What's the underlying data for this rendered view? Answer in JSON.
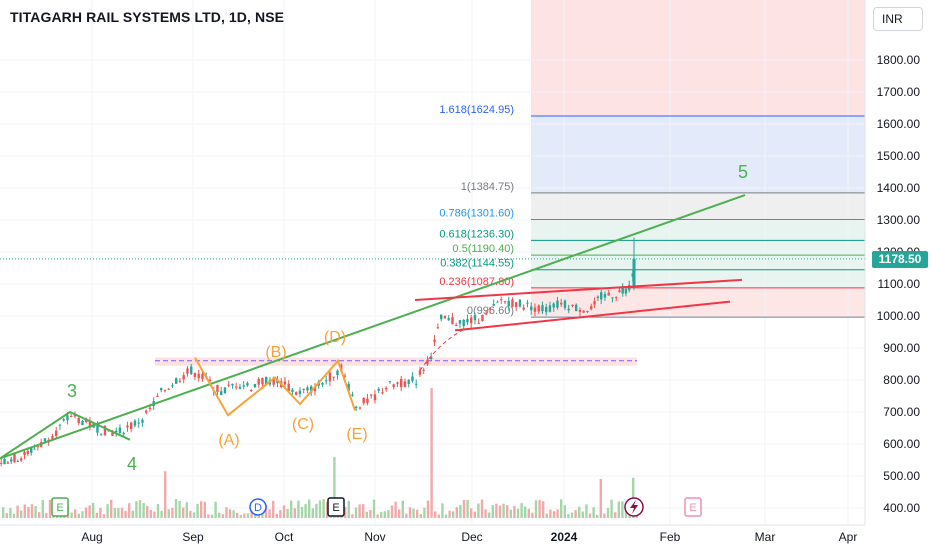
{
  "header": {
    "title": "TITAGARH RAIL SYSTEMS LTD, 1D, NSE",
    "currency": "INR"
  },
  "last_price": "1178.50",
  "colors": {
    "up": "#26a69a",
    "down": "#ef5350",
    "wave_orange": "#f7a23b",
    "wave_green": "#4caf50",
    "trend_green": "#4caf50",
    "trend_red": "#f23645"
  },
  "chart_data": {
    "type": "candlestick",
    "title": "TITAGARH RAIL SYSTEMS LTD, 1D, NSE",
    "y_axis": {
      "ticks": [
        "1800.00",
        "1700.00",
        "1600.00",
        "1500.00",
        "1400.00",
        "1300.00",
        "1200.00",
        "1100.00",
        "1000.00",
        "900.00",
        "800.00",
        "700.00",
        "600.00",
        "500.00",
        "400.00"
      ],
      "range": [
        372,
        1910
      ]
    },
    "x_axis": {
      "labels": [
        "Aug",
        "Sep",
        "Oct",
        "Nov",
        "Dec",
        "2024",
        "Feb",
        "Mar",
        "Apr"
      ]
    },
    "fib_levels": [
      {
        "label": "1.618(1624.95)",
        "value": 1624.95,
        "color": "#2962ff"
      },
      {
        "label": "1(1384.75)",
        "value": 1384.75,
        "color": "#787b86"
      },
      {
        "label": "0.786(1301.60)",
        "value": 1301.6,
        "color": "#2196f3"
      },
      {
        "label": "0.618(1236.30)",
        "value": 1236.3,
        "color": "#089981"
      },
      {
        "label": "0.5(1190.40)",
        "value": 1190.4,
        "color": "#4caf50"
      },
      {
        "label": "0.382(1144.55)",
        "value": 1144.55,
        "color": "#089981"
      },
      {
        "label": "0.236(1087.80)",
        "value": 1087.8,
        "color": "#f23645"
      },
      {
        "label": "0(996.60)",
        "value": 996.6,
        "color": "#787b86"
      }
    ],
    "wave_labels": [
      {
        "text": "3",
        "color": "#4caf50"
      },
      {
        "text": "4",
        "color": "#4caf50"
      },
      {
        "text": "5",
        "color": "#4caf50"
      },
      {
        "text": "(A)",
        "color": "#f7a23b"
      },
      {
        "text": "(B)",
        "color": "#f7a23b"
      },
      {
        "text": "(C)",
        "color": "#f7a23b"
      },
      {
        "text": "(D)",
        "color": "#f7a23b"
      },
      {
        "text": "(E)",
        "color": "#f7a23b"
      }
    ],
    "price_series": [
      {
        "x": 0,
        "p": 545
      },
      {
        "x": 20,
        "p": 560
      },
      {
        "x": 40,
        "p": 600
      },
      {
        "x": 55,
        "p": 640
      },
      {
        "x": 70,
        "p": 690
      },
      {
        "x": 85,
        "p": 665
      },
      {
        "x": 100,
        "p": 645
      },
      {
        "x": 115,
        "p": 635
      },
      {
        "x": 130,
        "p": 655
      },
      {
        "x": 145,
        "p": 690
      },
      {
        "x": 160,
        "p": 760
      },
      {
        "x": 175,
        "p": 800
      },
      {
        "x": 190,
        "p": 830
      },
      {
        "x": 205,
        "p": 800
      },
      {
        "x": 220,
        "p": 760
      },
      {
        "x": 235,
        "p": 790
      },
      {
        "x": 250,
        "p": 780
      },
      {
        "x": 265,
        "p": 800
      },
      {
        "x": 280,
        "p": 790
      },
      {
        "x": 295,
        "p": 760
      },
      {
        "x": 310,
        "p": 770
      },
      {
        "x": 325,
        "p": 800
      },
      {
        "x": 340,
        "p": 840
      },
      {
        "x": 355,
        "p": 720
      },
      {
        "x": 370,
        "p": 740
      },
      {
        "x": 385,
        "p": 780
      },
      {
        "x": 400,
        "p": 790
      },
      {
        "x": 415,
        "p": 800
      },
      {
        "x": 430,
        "p": 880
      },
      {
        "x": 440,
        "p": 990
      },
      {
        "x": 455,
        "p": 980
      },
      {
        "x": 470,
        "p": 985
      },
      {
        "x": 485,
        "p": 1000
      },
      {
        "x": 500,
        "p": 1050
      },
      {
        "x": 515,
        "p": 1040
      },
      {
        "x": 530,
        "p": 1030
      },
      {
        "x": 545,
        "p": 1020
      },
      {
        "x": 560,
        "p": 1040
      },
      {
        "x": 575,
        "p": 1025
      },
      {
        "x": 590,
        "p": 1020
      },
      {
        "x": 600,
        "p": 1060
      },
      {
        "x": 615,
        "p": 1070
      },
      {
        "x": 628,
        "p": 1090
      },
      {
        "x": 635,
        "p": 1178.5
      }
    ],
    "volume_spikes": [
      {
        "x": 430,
        "v": 100
      },
      {
        "x": 333,
        "v": 47
      },
      {
        "x": 165,
        "v": 36
      },
      {
        "x": 600,
        "v": 30
      },
      {
        "x": 632,
        "v": 31
      }
    ],
    "event_markers": [
      {
        "type": "E"
      },
      {
        "type": "D"
      },
      {
        "type": "E"
      },
      {
        "type": "E"
      }
    ]
  }
}
